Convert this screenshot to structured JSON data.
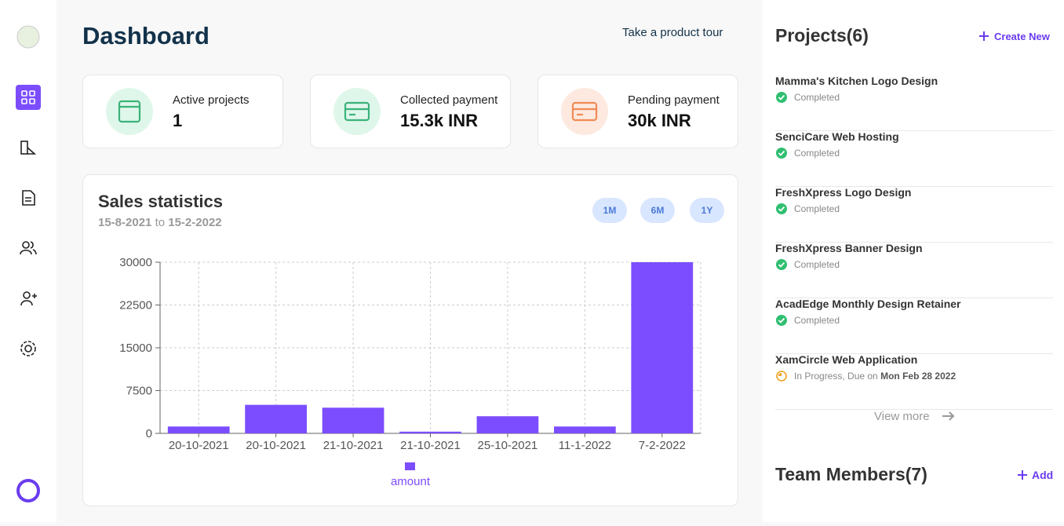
{
  "header": {
    "title": "Dashboard",
    "tour_link": "Take a product tour"
  },
  "stats": [
    {
      "label": "Active projects",
      "value": "1"
    },
    {
      "label": "Collected payment",
      "value": "15.3k INR"
    },
    {
      "label": "Pending payment",
      "value": "30k INR"
    }
  ],
  "chart_data": {
    "type": "bar",
    "title": "Sales statistics",
    "date_from": "15-8-2021",
    "date_joiner": "to",
    "date_to": "15-2-2022",
    "ranges": [
      "1M",
      "6M",
      "1Y"
    ],
    "categories": [
      "20-10-2021",
      "20-10-2021",
      "21-10-2021",
      "21-10-2021",
      "25-10-2021",
      "11-1-2022",
      "7-2-2022"
    ],
    "series": [
      {
        "name": "amount",
        "color": "#7c4dff",
        "values": [
          1200,
          5000,
          4500,
          300,
          3000,
          1200,
          30000
        ]
      }
    ],
    "ylim": [
      0,
      30000
    ],
    "yticks": [
      0,
      7500,
      15000,
      22500,
      30000
    ],
    "grid": true
  },
  "projects": {
    "title": "Projects(6)",
    "action": "Create New",
    "items": [
      {
        "name": "Mamma's Kitchen Logo Design",
        "status": "Completed"
      },
      {
        "name": "SenciCare Web Hosting",
        "status": "Completed"
      },
      {
        "name": "FreshXpress Logo Design",
        "status": "Completed"
      },
      {
        "name": "FreshXpress Banner Design",
        "status": "Completed"
      },
      {
        "name": "AcadEdge Monthly Design Retainer",
        "status": "Completed"
      },
      {
        "name": "XamCircle Web Application",
        "status": "In Progress, Due on",
        "due": "Mon Feb 28 2022"
      }
    ],
    "view_more": "View more"
  },
  "team": {
    "title": "Team Members(7)",
    "action": "Add"
  }
}
